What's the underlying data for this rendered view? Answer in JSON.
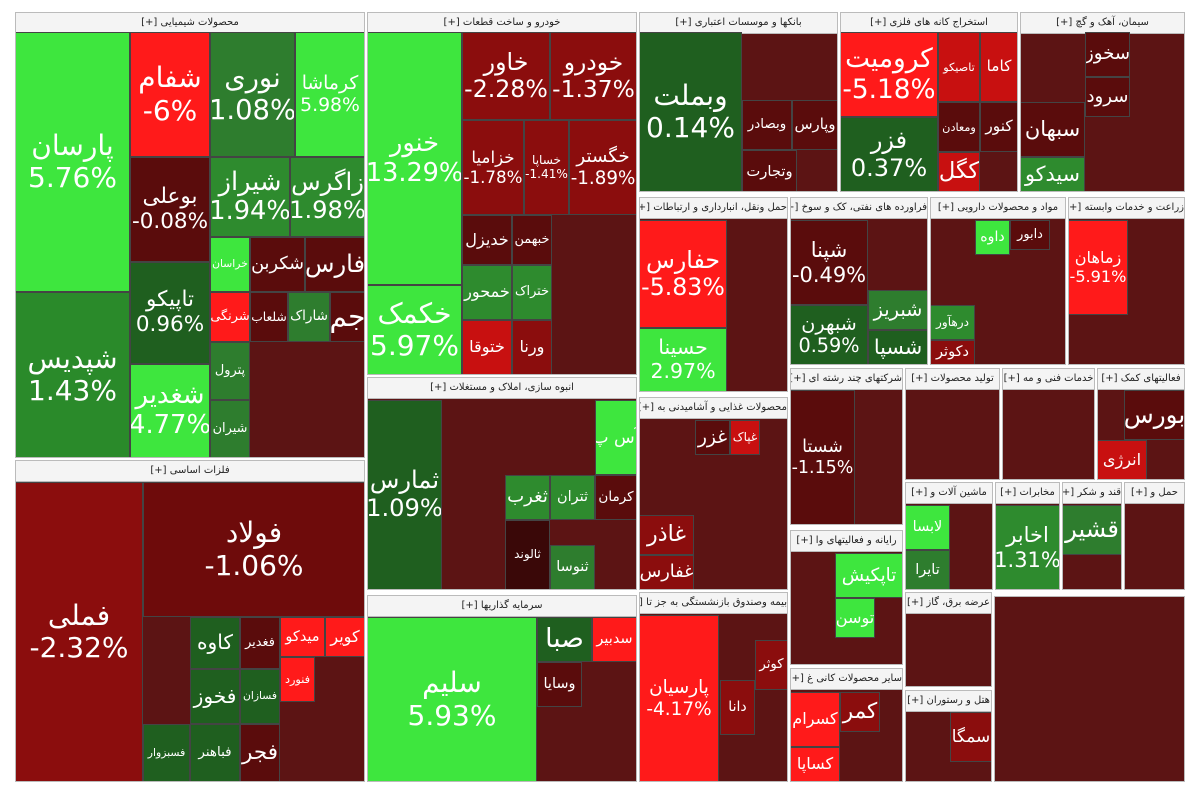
{
  "sectors": [
    {
      "title": "محصولات شیمیایی [+]",
      "tiles": [
        {
          "name": "پارسان",
          "change": "5.76%",
          "color": "#3ee63e"
        },
        {
          "name": "شپدیس",
          "change": "1.43%",
          "color": "#2a8a2a"
        },
        {
          "name": "شفام",
          "change": "-6%",
          "color": "#ff1a1a"
        },
        {
          "name": "نوری",
          "change": "1.08%",
          "color": "#2e7d2e"
        },
        {
          "name": "کرماشا",
          "change": "5.98%",
          "color": "#3ee63e"
        },
        {
          "name": "بوعلی",
          "change": "-0.08%",
          "color": "#5a0c0c"
        },
        {
          "name": "شیراز",
          "change": "1.94%",
          "color": "#2e8b2e"
        },
        {
          "name": "زاگرس",
          "change": "1.98%",
          "color": "#2e8b2e"
        },
        {
          "name": "تاپیکو",
          "change": "0.96%",
          "color": "#1f5f1f"
        },
        {
          "name": "شغدیر",
          "change": "4.77%",
          "color": "#3ee63e"
        },
        {
          "name": "خراسان",
          "color": "#3ee63e"
        },
        {
          "name": "شکربن",
          "color": "#5a0c0c"
        },
        {
          "name": "فارس",
          "color": "#5a0c0c"
        },
        {
          "name": "شرنگی",
          "color": "#ff1a1a"
        },
        {
          "name": "شلعاب",
          "color": "#5a0c0c"
        },
        {
          "name": "شاراک",
          "color": "#2e7d2e"
        },
        {
          "name": "جم",
          "color": "#5a0c0c"
        },
        {
          "name": "پترول",
          "color": "#2e7d2e"
        },
        {
          "name": "شیران",
          "color": "#2e7d2e"
        }
      ]
    },
    {
      "title": "فلزات اساسی [+]",
      "tiles": [
        {
          "name": "فملی",
          "change": "-2.32%",
          "color": "#8b0d0d"
        },
        {
          "name": "فولاد",
          "change": "-1.06%",
          "color": "#6e0b0b"
        },
        {
          "name": "کاوه",
          "color": "#1f5f1f"
        },
        {
          "name": "فغدیر",
          "color": "#5a0c0c"
        },
        {
          "name": "میدکو",
          "color": "#ff1a1a"
        },
        {
          "name": "کویر",
          "color": "#ff1a1a"
        },
        {
          "name": "فخوز",
          "color": "#1f5f1f"
        },
        {
          "name": "فسازان",
          "color": "#1f5f1f"
        },
        {
          "name": "فنورد",
          "color": "#ff1a1a"
        },
        {
          "name": "فباهنر",
          "color": "#1f5f1f"
        },
        {
          "name": "فجر",
          "color": "#5a0c0c"
        },
        {
          "name": "فسبزوار",
          "color": "#1f5f1f"
        }
      ]
    },
    {
      "title": "خودرو و ساخت قطعات [+]",
      "tiles": [
        {
          "name": "خنور",
          "change": "13.29%",
          "color": "#3ee63e"
        },
        {
          "name": "خکمک",
          "change": "5.97%",
          "color": "#3ee63e"
        },
        {
          "name": "خاور",
          "change": "-2.28%",
          "color": "#8b0d0d"
        },
        {
          "name": "خودرو",
          "change": "-1.37%",
          "color": "#8b0d0d"
        },
        {
          "name": "خزامیا",
          "change": "-1.78%",
          "color": "#8b0d0d"
        },
        {
          "name": "خساپا",
          "change": "-1.41%",
          "color": "#8b0d0d"
        },
        {
          "name": "خگستر",
          "change": "-1.89%",
          "color": "#8b0d0d"
        },
        {
          "name": "خدیزل",
          "color": "#5a0c0c"
        },
        {
          "name": "خبهمن",
          "color": "#5a0c0c"
        },
        {
          "name": "خمحور",
          "color": "#2e8b2e"
        },
        {
          "name": "ختراک",
          "color": "#2e8b2e"
        },
        {
          "name": "ختوقا",
          "color": "#c81010"
        },
        {
          "name": "ورنا",
          "color": "#8b0d0d"
        }
      ]
    },
    {
      "title": "انبوه سازی، املاک و مستغلات [+]",
      "tiles": [
        {
          "name": "ثمارس",
          "change": "1.09%",
          "color": "#1f5f1f"
        },
        {
          "name": "آس پ",
          "color": "#3ee63e"
        },
        {
          "name": "کرمان",
          "color": "#5a0c0c"
        },
        {
          "name": "ثتران",
          "color": "#2e8b2e"
        },
        {
          "name": "ثغرب",
          "color": "#2e8b2e"
        },
        {
          "name": "ثالوند",
          "color": "#3a0808"
        },
        {
          "name": "ثنوسا",
          "color": "#2e7d2e"
        }
      ]
    },
    {
      "title": "سرمایه گذاریها [+]",
      "tiles": [
        {
          "name": "سلیم",
          "change": "5.93%",
          "color": "#3ee63e"
        },
        {
          "name": "صبا",
          "color": "#1f5f1f"
        },
        {
          "name": "سدبیر",
          "color": "#ff1a1a"
        },
        {
          "name": "وسایا",
          "color": "#5a0c0c"
        }
      ]
    },
    {
      "title": "بانکها و موسسات اعتباری [+]",
      "tiles": [
        {
          "name": "وبملت",
          "change": "0.14%",
          "color": "#1f5f1f"
        },
        {
          "name": "وبصادر",
          "color": "#5a0c0c"
        },
        {
          "name": "وپارس",
          "color": "#5a0c0c"
        },
        {
          "name": "وتجارت",
          "color": "#5a0c0c"
        }
      ]
    },
    {
      "title": "استخراج کانه های فلزی [+]",
      "tiles": [
        {
          "name": "کرومیت",
          "change": "-5.18%",
          "color": "#ff1a1a"
        },
        {
          "name": "فزر",
          "change": "0.37%",
          "color": "#1f5f1f"
        },
        {
          "name": "تاصیکو",
          "color": "#c81010"
        },
        {
          "name": "کاما",
          "color": "#c81010"
        },
        {
          "name": "ومعادن",
          "color": "#5a0c0c"
        },
        {
          "name": "کنور",
          "color": "#5a0c0c"
        },
        {
          "name": "کگل",
          "color": "#c81010"
        }
      ]
    },
    {
      "title": "سیمان، آهک و گچ [+]",
      "tiles": [
        {
          "name": "سخوز",
          "color": "#5a0c0c"
        },
        {
          "name": "سرود",
          "color": "#5a0c0c"
        },
        {
          "name": "سبهان",
          "color": "#5a0c0c"
        },
        {
          "name": "سیدکو",
          "color": "#2e8b2e"
        }
      ]
    },
    {
      "title": "حمل ونقل، انبارداری و ارتباطات [+]",
      "tiles": [
        {
          "name": "حفارس",
          "change": "-5.83%",
          "color": "#ff1a1a"
        },
        {
          "name": "حسینا",
          "change": "2.97%",
          "color": "#3ee63e"
        }
      ]
    },
    {
      "title": "فراورده های نفتی، کک و سوخ [+]",
      "tiles": [
        {
          "name": "شپنا",
          "change": "-0.49%",
          "color": "#5a0c0c"
        },
        {
          "name": "شبهرن",
          "change": "0.59%",
          "color": "#1f5f1f"
        },
        {
          "name": "شبریز",
          "color": "#2e7d2e"
        },
        {
          "name": "شسپا",
          "color": "#1f5f1f"
        }
      ]
    },
    {
      "title": "مواد و محصولات دارویی [+]",
      "tiles": [
        {
          "name": "داوه",
          "color": "#3ee63e"
        },
        {
          "name": "دابور",
          "color": "#5a0c0c"
        },
        {
          "name": "درهآور",
          "color": "#2e8b2e"
        },
        {
          "name": "دکوثر",
          "color": "#8b0d0d"
        }
      ]
    },
    {
      "title": "زراعت و خدمات وابسته [+]",
      "tiles": [
        {
          "name": "زماهان",
          "change": "-5.91%",
          "color": "#ff1a1a"
        }
      ]
    },
    {
      "title": "محصولات غذایی و آشامیدنی به [+]",
      "tiles": [
        {
          "name": "غزر",
          "color": "#5a0c0c"
        },
        {
          "name": "غپاک",
          "color": "#c81010"
        },
        {
          "name": "غاذر",
          "color": "#8b0d0d"
        },
        {
          "name": "غفارس",
          "color": "#8b0d0d"
        }
      ]
    },
    {
      "title": "بیمه وصندوق بازنشستگی به جز تا [+]",
      "tiles": [
        {
          "name": "پارسیان",
          "change": "-4.17%",
          "color": "#ff1a1a"
        },
        {
          "name": "کوثر",
          "color": "#8b0d0d"
        },
        {
          "name": "دانا",
          "color": "#8b0d0d"
        }
      ]
    },
    {
      "title": "شرکتهای چند رشته ای [+]",
      "tiles": [
        {
          "name": "شستا",
          "change": "-1.15%",
          "color": "#5a0c0c"
        }
      ]
    },
    {
      "title": "تولید محصولات [+]",
      "tiles": []
    },
    {
      "title": "خدمات فنی و مه [+]",
      "tiles": []
    },
    {
      "title": "فعالیتهای کمک [+]",
      "tiles": [
        {
          "name": "بورس",
          "color": "#5a0c0c"
        },
        {
          "name": "انرژی",
          "color": "#c81010"
        }
      ]
    },
    {
      "title": "ماشین آلات و [+]",
      "tiles": [
        {
          "name": "لابسا",
          "color": "#3ee63e"
        },
        {
          "name": "تایرا",
          "color": "#2e7d2e"
        }
      ]
    },
    {
      "title": "مخابرات [+]",
      "tiles": [
        {
          "name": "اخابر",
          "change": "1.31%",
          "color": "#2e8b2e"
        }
      ]
    },
    {
      "title": "قند و شکر [+]",
      "tiles": [
        {
          "name": "قشیر",
          "color": "#2e7d2e"
        }
      ]
    },
    {
      "title": "حمل و [+]",
      "tiles": []
    },
    {
      "title": "رایانه و فعالیتهای وا [+]",
      "tiles": [
        {
          "name": "تاپکیش",
          "color": "#3ee63e"
        },
        {
          "name": "توسن",
          "color": "#3ee63e"
        }
      ]
    },
    {
      "title": "سایر محصولات کانی غ [+]",
      "tiles": [
        {
          "name": "کسرام",
          "color": "#ff1a1a"
        },
        {
          "name": "کساپا",
          "color": "#ff1a1a"
        },
        {
          "name": "کمر",
          "color": "#8b0d0d"
        }
      ]
    },
    {
      "title": "عرضه برق، گاز [+]",
      "tiles": []
    },
    {
      "title": "هتل و رستوران [+]",
      "tiles": [
        {
          "name": "سمگا",
          "color": "#8b0d0d"
        }
      ]
    }
  ]
}
